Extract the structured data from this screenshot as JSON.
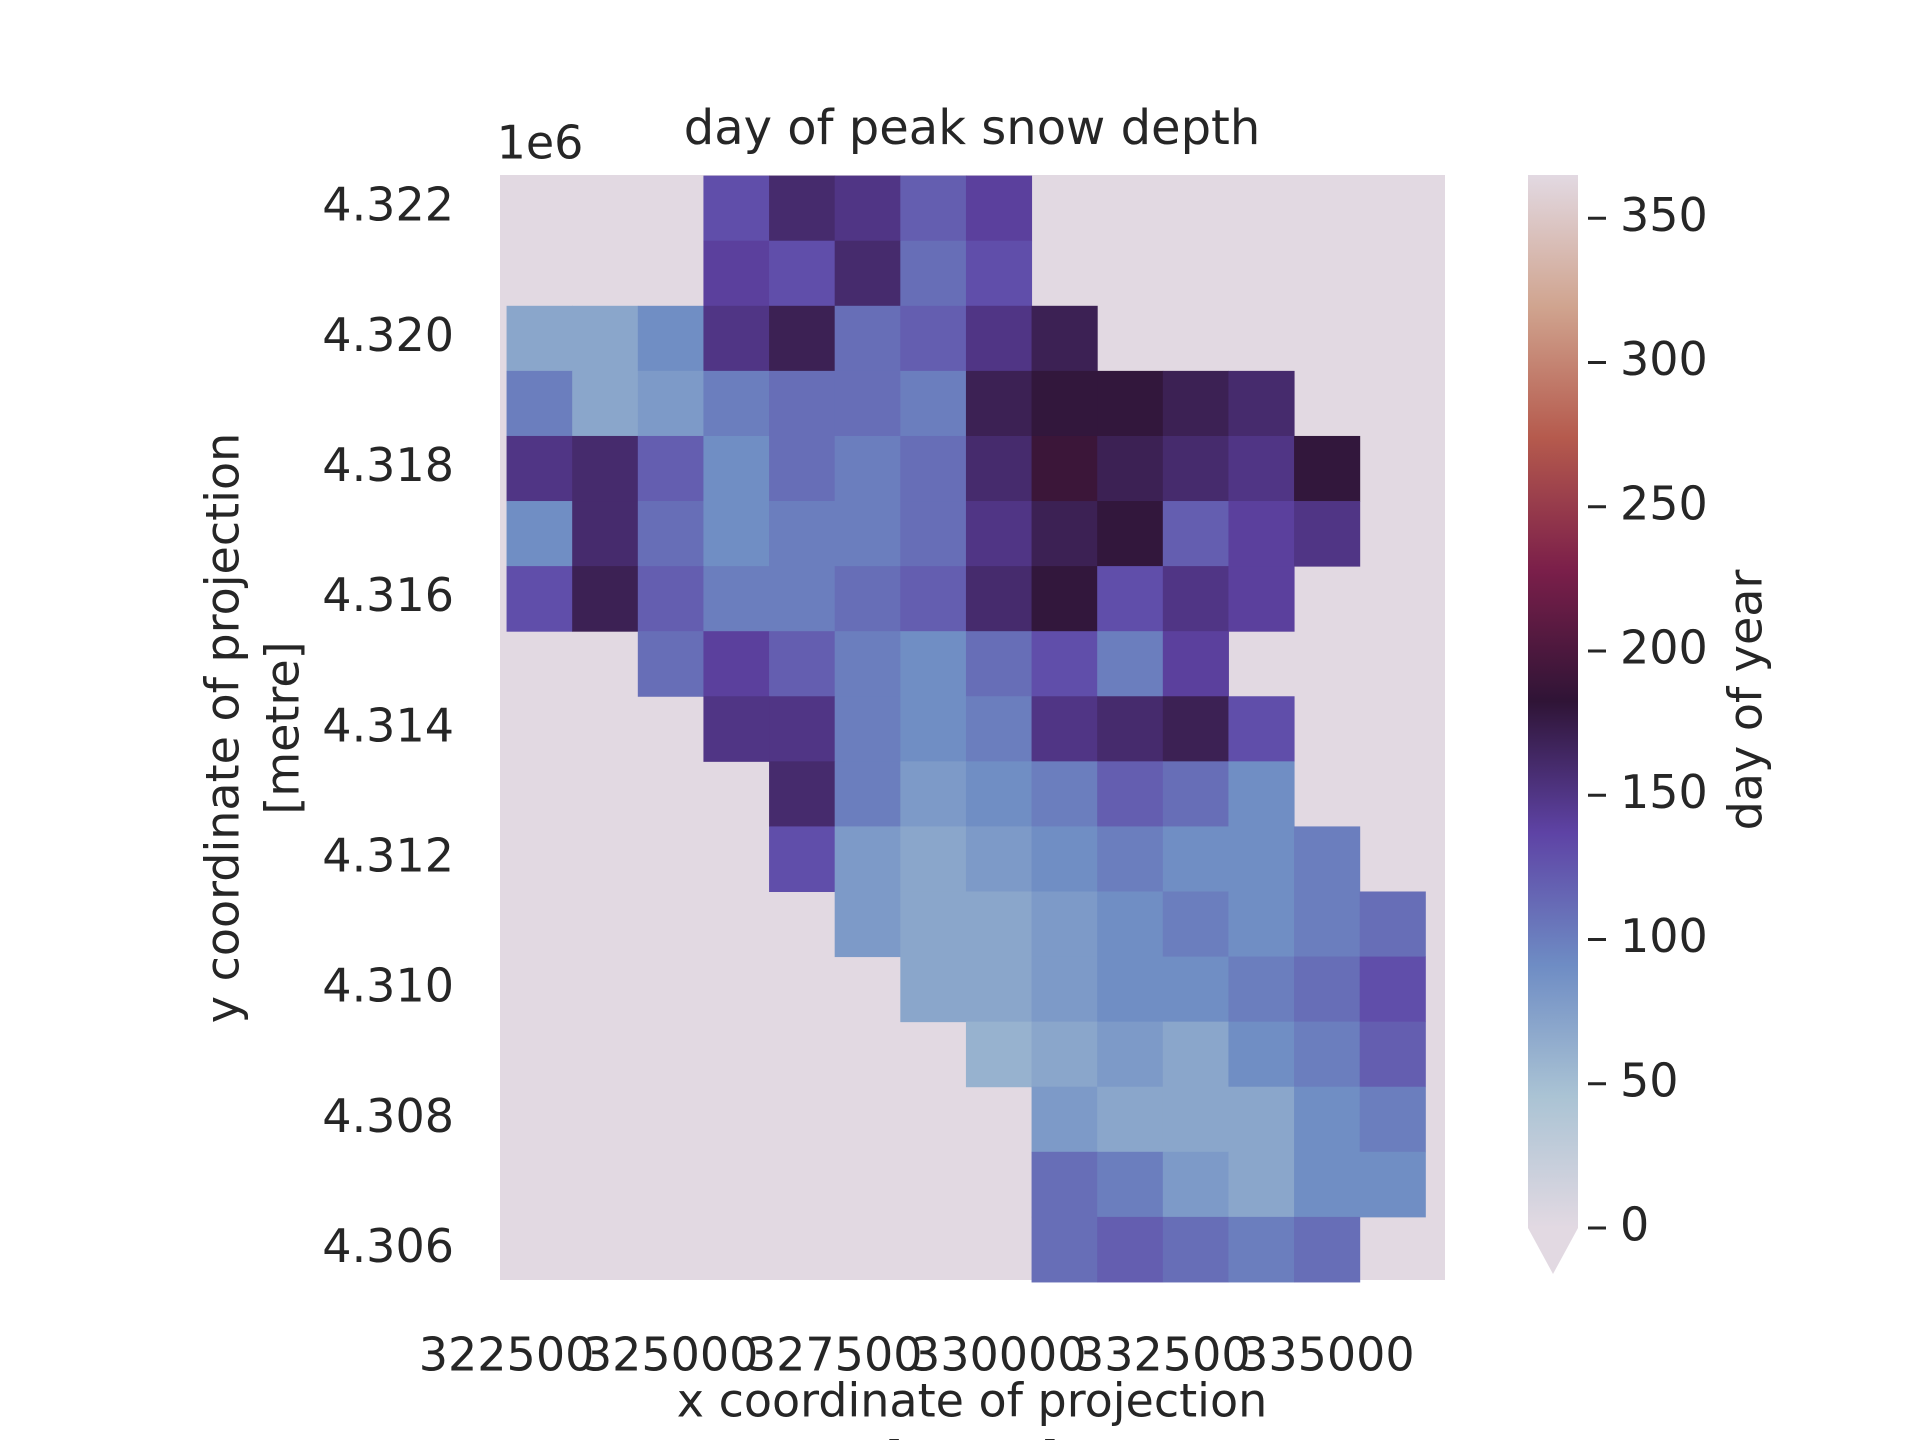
{
  "chart_data": {
    "type": "heatmap",
    "title": "day of peak snow depth",
    "xlabel": [
      "x coordinate of projection",
      "[metre]"
    ],
    "ylabel": [
      "y coordinate of projection",
      "[metre]"
    ],
    "y_offset_label": "1e6",
    "colorbar_label": "day of year",
    "xlim": [
      322400,
      336800
    ],
    "ylim": [
      4305530,
      4322510
    ],
    "xticks": [
      322500,
      325000,
      327500,
      330000,
      332500,
      335000
    ],
    "yticks": [
      {
        "value": 4306000,
        "label": "4.306"
      },
      {
        "value": 4308000,
        "label": "4.308"
      },
      {
        "value": 4310000,
        "label": "4.310"
      },
      {
        "value": 4312000,
        "label": "4.312"
      },
      {
        "value": 4314000,
        "label": "4.314"
      },
      {
        "value": 4316000,
        "label": "4.316"
      },
      {
        "value": 4318000,
        "label": "4.318"
      },
      {
        "value": 4320000,
        "label": "4.320"
      },
      {
        "value": 4322000,
        "label": "4.322"
      }
    ],
    "clim": [
      0,
      365
    ],
    "cticks": [
      0,
      50,
      100,
      150,
      200,
      250,
      300,
      350
    ],
    "extend": "min",
    "colormap": [
      "#e2d9e2",
      "#aac3d4",
      "#6e8cc4",
      "#5e43a5",
      "#2f1436",
      "#7b1f4a",
      "#b55a4d",
      "#d0a48f",
      "#e2d9e2"
    ],
    "background": "#e2d9e2",
    "x": [
      323000,
      324000,
      325000,
      326000,
      327000,
      328000,
      329000,
      330000,
      331000,
      332000,
      333000,
      334000,
      335000,
      336000
    ],
    "y": [
      4322000,
      4321000,
      4320000,
      4319000,
      4318000,
      4317000,
      4316000,
      4315000,
      4314000,
      4313000,
      4312000,
      4311000,
      4310000,
      4309000,
      4308000,
      4307000,
      4306000
    ],
    "z": [
      [
        null,
        null,
        null,
        130,
        160,
        150,
        120,
        140,
        null,
        null,
        null,
        null,
        null,
        null
      ],
      [
        null,
        null,
        null,
        140,
        130,
        160,
        110,
        130,
        null,
        null,
        null,
        null,
        null,
        null
      ],
      [
        70,
        70,
        90,
        150,
        170,
        110,
        120,
        150,
        170,
        null,
        null,
        null,
        null,
        null
      ],
      [
        100,
        70,
        80,
        100,
        110,
        110,
        100,
        170,
        180,
        180,
        170,
        160,
        null,
        null
      ],
      [
        150,
        160,
        120,
        90,
        110,
        100,
        110,
        160,
        190,
        170,
        160,
        150,
        180,
        null
      ],
      [
        90,
        160,
        110,
        90,
        100,
        100,
        110,
        150,
        170,
        180,
        120,
        140,
        150,
        null
      ],
      [
        130,
        170,
        120,
        100,
        100,
        110,
        120,
        160,
        180,
        130,
        150,
        140,
        null,
        null
      ],
      [
        null,
        null,
        110,
        140,
        120,
        100,
        90,
        110,
        130,
        100,
        140,
        null,
        null,
        null
      ],
      [
        null,
        null,
        null,
        150,
        150,
        100,
        90,
        100,
        150,
        160,
        170,
        130,
        null,
        null
      ],
      [
        null,
        null,
        null,
        null,
        160,
        100,
        80,
        90,
        100,
        120,
        110,
        90,
        null,
        null
      ],
      [
        null,
        null,
        null,
        null,
        130,
        80,
        70,
        80,
        90,
        100,
        90,
        90,
        100,
        null
      ],
      [
        null,
        null,
        null,
        null,
        null,
        80,
        70,
        70,
        80,
        90,
        100,
        90,
        100,
        110
      ],
      [
        null,
        null,
        null,
        null,
        null,
        null,
        70,
        70,
        80,
        90,
        90,
        100,
        110,
        130
      ],
      [
        null,
        null,
        null,
        null,
        null,
        null,
        null,
        60,
        70,
        80,
        70,
        90,
        100,
        120
      ],
      [
        null,
        null,
        null,
        null,
        null,
        null,
        null,
        null,
        80,
        70,
        70,
        70,
        90,
        100
      ],
      [
        null,
        null,
        null,
        null,
        null,
        null,
        null,
        null,
        110,
        100,
        80,
        70,
        90,
        90
      ],
      [
        null,
        null,
        null,
        null,
        null,
        null,
        null,
        null,
        110,
        120,
        110,
        100,
        110,
        null
      ]
    ]
  }
}
